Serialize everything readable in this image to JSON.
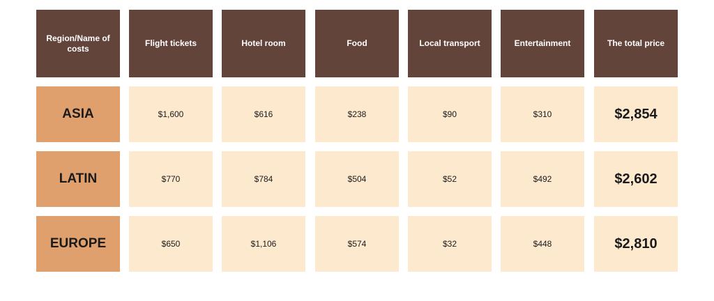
{
  "table": {
    "header": [
      "Region/Name of costs",
      "Flight tickets",
      "Hotel room",
      "Food",
      "Local transport",
      "Entertainment",
      "The total price"
    ],
    "rows": [
      [
        "ASIA",
        "$1,600",
        "$616",
        "$238",
        "$90",
        "$310",
        "$2,854"
      ],
      [
        "LATIN",
        "$770",
        "$784",
        "$504",
        "$52",
        "$492",
        "$2,602"
      ],
      [
        "EUROPE",
        "$650",
        "$1,106",
        "$574",
        "$32",
        "$448",
        "$2,810"
      ]
    ]
  }
}
